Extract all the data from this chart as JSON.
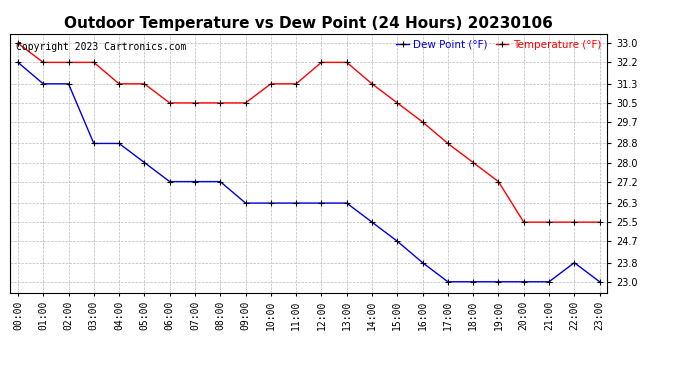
{
  "title": "Outdoor Temperature vs Dew Point (24 Hours) 20230106",
  "copyright": "Copyright 2023 Cartronics.com",
  "legend_dew": "Dew Point (°F)",
  "legend_temp": "Temperature (°F)",
  "hours": [
    0,
    1,
    2,
    3,
    4,
    5,
    6,
    7,
    8,
    9,
    10,
    11,
    12,
    13,
    14,
    15,
    16,
    17,
    18,
    19,
    20,
    21,
    22,
    23
  ],
  "temperature": [
    33.0,
    32.2,
    32.2,
    32.2,
    31.3,
    31.3,
    30.5,
    30.5,
    30.5,
    30.5,
    31.3,
    31.3,
    32.2,
    32.2,
    31.3,
    30.5,
    29.7,
    28.8,
    28.0,
    27.2,
    25.5,
    25.5,
    25.5,
    25.5
  ],
  "dew_point": [
    32.2,
    31.3,
    31.3,
    28.8,
    28.8,
    28.0,
    27.2,
    27.2,
    27.2,
    26.3,
    26.3,
    26.3,
    26.3,
    26.3,
    25.5,
    24.7,
    23.8,
    23.0,
    23.0,
    23.0,
    23.0,
    23.0,
    23.8,
    23.0
  ],
  "ylim_min": 22.55,
  "ylim_max": 33.4,
  "yticks": [
    23.0,
    23.8,
    24.7,
    25.5,
    26.3,
    27.2,
    28.0,
    28.8,
    29.7,
    30.5,
    31.3,
    32.2,
    33.0
  ],
  "temp_color": "#ff0000",
  "dew_color": "#0000dd",
  "marker_color": "#000000",
  "background_color": "#ffffff",
  "grid_color": "#bbbbbb",
  "title_fontsize": 11,
  "tick_fontsize": 7,
  "copyright_fontsize": 7,
  "legend_fontsize": 7.5
}
